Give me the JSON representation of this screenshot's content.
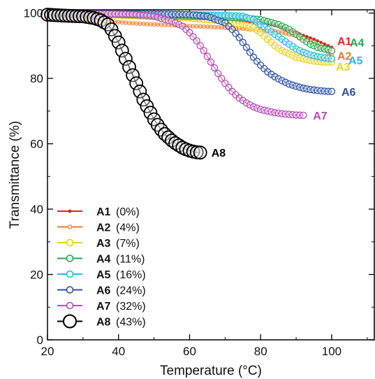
{
  "chart_data": {
    "type": "scatter",
    "xlabel": "Temperature (°C)",
    "ylabel": "Transmittance (%)",
    "xlim": [
      20,
      112
    ],
    "ylim": [
      0,
      101
    ],
    "xticks": [
      "20",
      "40",
      "60",
      "80",
      "100"
    ],
    "yticks": [
      "0",
      "20",
      "40",
      "60",
      "80",
      "100"
    ],
    "legend_position": "bottom-left",
    "series": [
      {
        "name": "A1",
        "percent": "(0%)",
        "color": "#e02424",
        "marker": "small-filled",
        "x": [
          20,
          30,
          40,
          50,
          60,
          70,
          75,
          80,
          85,
          90,
          95,
          100
        ],
        "y": [
          100,
          99.8,
          99.5,
          99,
          98.5,
          98,
          97.5,
          97,
          96,
          94,
          92,
          89.5
        ]
      },
      {
        "name": "A2",
        "percent": "(4%)",
        "color": "#f07820",
        "marker": "small-open",
        "x": [
          20,
          25,
          30,
          35,
          40,
          45,
          50,
          55,
          60,
          65,
          70,
          75,
          80,
          85,
          90,
          95,
          100
        ],
        "y": [
          99.5,
          99,
          98.5,
          97.8,
          97.2,
          96.8,
          96.5,
          96.3,
          96,
          95.8,
          95.5,
          95.2,
          94.8,
          94.3,
          93,
          91,
          87
        ]
      },
      {
        "name": "A3",
        "percent": "(7%)",
        "color": "#e8d21a",
        "marker": "open",
        "x": [
          20,
          30,
          40,
          50,
          60,
          70,
          75,
          78,
          80,
          82,
          84,
          86,
          88,
          90,
          92,
          94,
          96,
          98,
          100
        ],
        "y": [
          99.5,
          99.5,
          99.3,
          99,
          98.5,
          97.5,
          96.5,
          95.5,
          94,
          92,
          90,
          88.5,
          87.5,
          86.5,
          86,
          85.5,
          85.2,
          85,
          85
        ]
      },
      {
        "name": "A4",
        "percent": "(11%)",
        "color": "#22a84a",
        "marker": "open",
        "x": [
          20,
          30,
          40,
          50,
          60,
          70,
          75,
          80,
          85,
          88,
          90,
          92,
          94,
          96,
          98,
          100
        ],
        "y": [
          99.8,
          99.8,
          99.6,
          99.3,
          99,
          98.8,
          98.5,
          98,
          96.5,
          95,
          93.5,
          92,
          90.5,
          89.5,
          89,
          88.5
        ]
      },
      {
        "name": "A5",
        "percent": "(16%)",
        "color": "#27b7e6",
        "marker": "open",
        "x": [
          20,
          30,
          40,
          50,
          60,
          70,
          75,
          78,
          80,
          82,
          84,
          86,
          88,
          90,
          92,
          94,
          96,
          98,
          100
        ],
        "y": [
          99.8,
          99.8,
          99.8,
          99.7,
          99.5,
          99.3,
          99,
          98,
          96.5,
          95,
          93.5,
          92,
          90.5,
          89,
          88,
          87.2,
          86.7,
          86.3,
          86
        ]
      },
      {
        "name": "A6",
        "percent": "(24%)",
        "color": "#2b4fa8",
        "marker": "open",
        "x": [
          20,
          30,
          40,
          50,
          60,
          65,
          70,
          72,
          74,
          76,
          78,
          80,
          82,
          84,
          86,
          88,
          90,
          92,
          94,
          96,
          98,
          100
        ],
        "y": [
          99.8,
          99.8,
          99.8,
          99.7,
          99.5,
          99,
          97,
          95,
          92.5,
          89.5,
          86.5,
          84,
          82,
          80.5,
          79.3,
          78.3,
          77.6,
          77,
          76.6,
          76.3,
          76.1,
          76
        ]
      },
      {
        "name": "A7",
        "percent": "(32%)",
        "color": "#b54ab5",
        "marker": "open",
        "x": [
          20,
          30,
          40,
          45,
          50,
          55,
          58,
          60,
          62,
          64,
          66,
          68,
          70,
          72,
          74,
          76,
          78,
          80,
          82,
          84,
          86,
          88,
          90,
          92
        ],
        "y": [
          99.8,
          99.8,
          99.7,
          99.5,
          99,
          97.5,
          96,
          94,
          91.5,
          88.5,
          85,
          81.5,
          78.5,
          76,
          74,
          72.5,
          71.3,
          70.5,
          70,
          69.5,
          69.2,
          69,
          68.8,
          68.7
        ]
      },
      {
        "name": "A8",
        "percent": "(43%)",
        "color": "#000000",
        "marker": "large-open",
        "x": [
          20,
          25,
          30,
          33,
          35,
          37,
          38,
          39,
          40,
          41,
          42,
          43,
          44,
          45,
          46,
          47,
          48,
          49,
          50,
          51,
          52,
          53,
          54,
          55,
          56,
          57,
          58,
          59,
          60,
          61,
          62,
          63
        ],
        "y": [
          99.5,
          99.2,
          99,
          98.5,
          97.8,
          96.5,
          95,
          93,
          91,
          88.5,
          86,
          83.5,
          81,
          78.5,
          76,
          73.5,
          71.5,
          69.5,
          67.5,
          65.8,
          64.3,
          63,
          62,
          61,
          60.2,
          59.5,
          58.8,
          58.3,
          57.9,
          57.6,
          57.4,
          57.3
        ]
      }
    ]
  }
}
